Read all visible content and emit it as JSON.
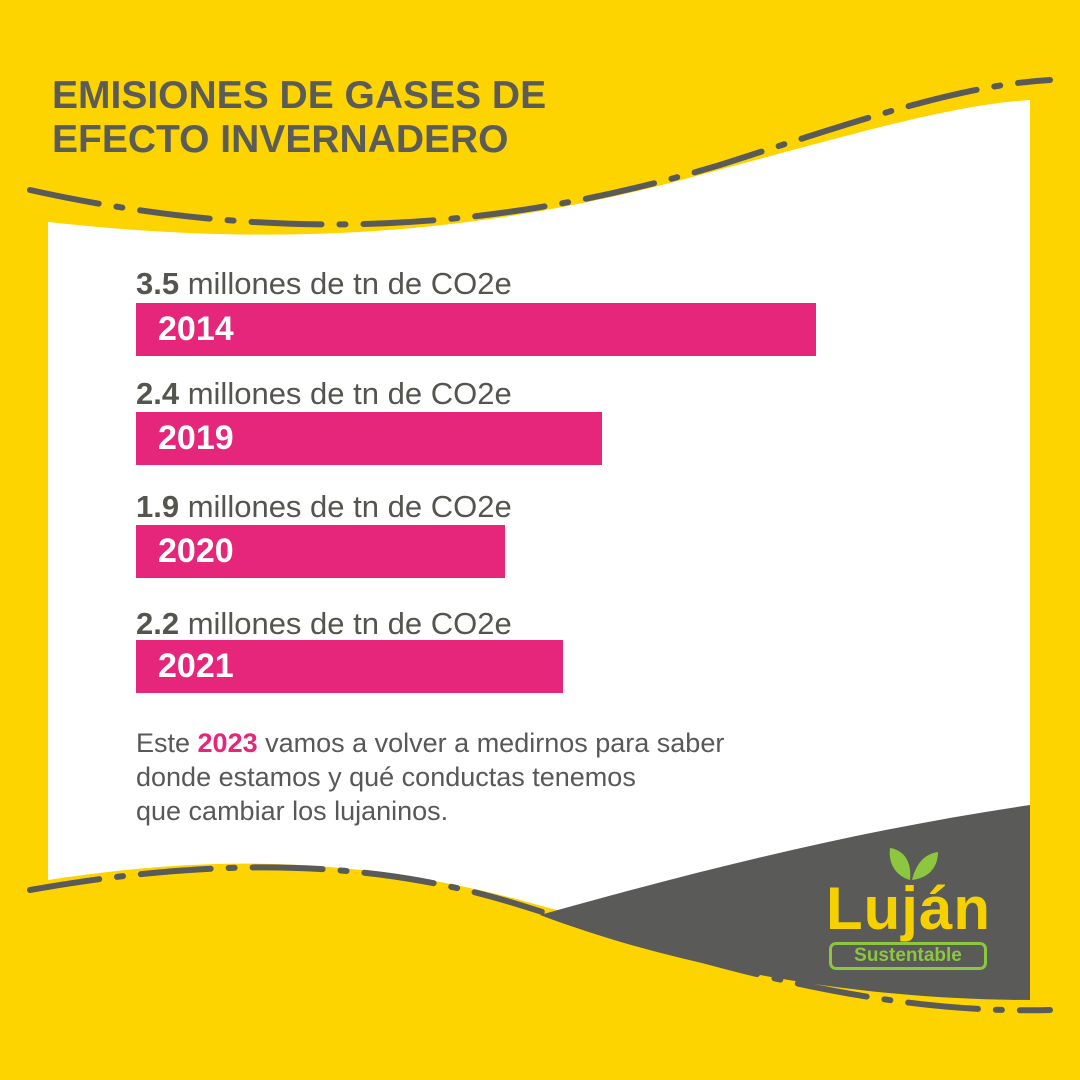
{
  "header": {
    "title_line1": "EMISIONES DE GASES DE",
    "title_line2": "EFECTO INVERNADERO"
  },
  "chart_data": {
    "type": "bar",
    "orientation": "horizontal",
    "categories": [
      "2014",
      "2019",
      "2020",
      "2021"
    ],
    "values": [
      3.5,
      2.4,
      1.9,
      2.2
    ],
    "value_labels": [
      "3.5",
      "2.4",
      "1.9",
      "2.2"
    ],
    "unit_text": "millones de tn de CO2e",
    "title": "EMISIONES DE GASES DE EFECTO INVERNADERO",
    "xlabel": "",
    "ylabel": "",
    "grid": false,
    "legend": "none",
    "bar_color": "#e5267a"
  },
  "note": {
    "prefix": "Este ",
    "highlight": "2023",
    "line1_rest": " vamos a volver a medirnos para saber",
    "line2": "donde estamos y qué conductas tenemos",
    "line3": "que cambiar los lujaninos."
  },
  "logo": {
    "main": "Luján",
    "sub": "Sustentable",
    "icon": "leaf-icon"
  },
  "colors": {
    "background_yellow": "#fdd400",
    "panel_white": "#ffffff",
    "dark_gray": "#5a5a58",
    "accent_pink": "#e5267a",
    "logo_green": "#8dc63f"
  }
}
